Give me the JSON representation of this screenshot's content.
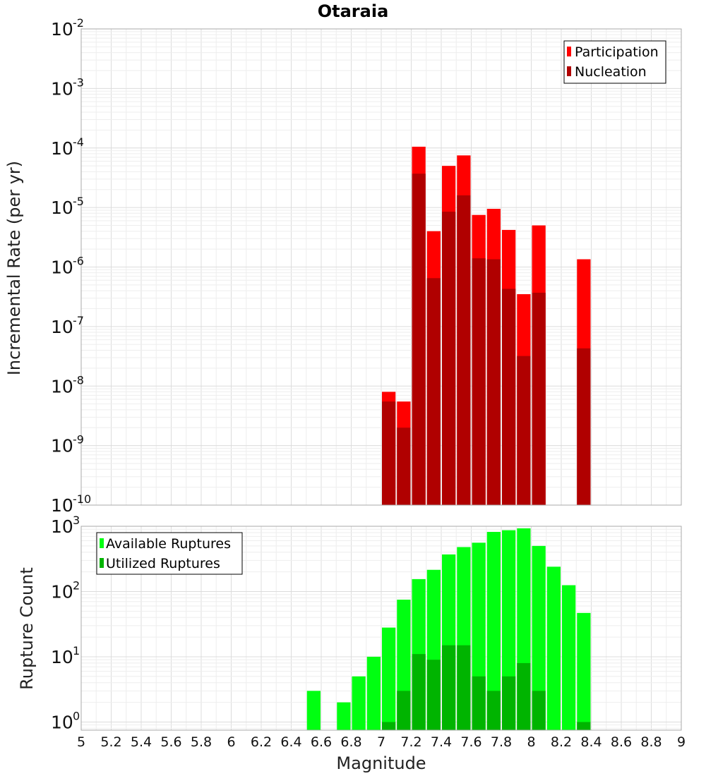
{
  "colors": {
    "participation": "#ff0000",
    "nucleation": "#b00000",
    "available": "#00ff11",
    "utilized": "#00b400"
  },
  "chart_data": [
    {
      "type": "bar",
      "title": "Otaraia",
      "xlabel": "",
      "ylabel": "Incremental Rate (per yr)",
      "xlim": [
        5,
        9
      ],
      "ylim": [
        1e-10,
        0.01
      ],
      "yscale": "log",
      "ytick_exponents": [
        "-10",
        "-9",
        "-8",
        "-7",
        "-6",
        "-5",
        "-4",
        "-3",
        "-2"
      ],
      "legend_position": "top-right",
      "grid": true,
      "series": [
        {
          "name": "Participation",
          "x": [
            7.05,
            7.15,
            7.25,
            7.35,
            7.45,
            7.55,
            7.65,
            7.75,
            7.85,
            7.95,
            8.05,
            8.35
          ],
          "values": [
            8e-09,
            5.5e-09,
            0.000105,
            4e-06,
            5e-05,
            7.5e-05,
            7.5e-06,
            9.5e-06,
            4.2e-06,
            3.5e-07,
            5e-06,
            1.35e-06
          ]
        },
        {
          "name": "Nucleation",
          "x": [
            7.05,
            7.15,
            7.25,
            7.35,
            7.45,
            7.55,
            7.65,
            7.75,
            7.85,
            7.95,
            8.05,
            8.35
          ],
          "values": [
            5.5e-09,
            2e-09,
            3.7e-05,
            6.5e-07,
            8.5e-06,
            1.6e-05,
            1.4e-06,
            1.35e-06,
            4.3e-07,
            3.2e-08,
            3.7e-07,
            4.3e-08
          ]
        }
      ]
    },
    {
      "type": "bar",
      "xlabel": "Magnitude",
      "ylabel": "Rupture Count",
      "xlim": [
        5,
        9
      ],
      "ylim": [
        0.75,
        1000
      ],
      "yscale": "log",
      "ytick_exponents": [
        "0",
        "1",
        "2",
        "3"
      ],
      "x_ticks": [
        "5",
        "5.2",
        "5.4",
        "5.6",
        "5.8",
        "6",
        "6.2",
        "6.4",
        "6.6",
        "6.8",
        "7",
        "7.2",
        "7.4",
        "7.6",
        "7.8",
        "8",
        "8.2",
        "8.4",
        "8.6",
        "8.8",
        "9"
      ],
      "legend_position": "top-left",
      "grid": true,
      "series": [
        {
          "name": "Available Ruptures",
          "x": [
            6.55,
            6.75,
            6.85,
            6.95,
            7.05,
            7.15,
            7.25,
            7.35,
            7.45,
            7.55,
            7.65,
            7.75,
            7.85,
            7.95,
            8.05,
            8.15,
            8.25,
            8.35
          ],
          "values": [
            3,
            2,
            5,
            10,
            28,
            75,
            155,
            215,
            370,
            480,
            560,
            820,
            870,
            930,
            500,
            240,
            125,
            47
          ]
        },
        {
          "name": "Utilized Ruptures",
          "x": [
            7.05,
            7.15,
            7.25,
            7.35,
            7.45,
            7.55,
            7.65,
            7.75,
            7.85,
            7.95,
            8.05,
            8.35
          ],
          "values": [
            1,
            3,
            11,
            9,
            15,
            15,
            5,
            3,
            5,
            8,
            3,
            1
          ]
        }
      ]
    }
  ]
}
